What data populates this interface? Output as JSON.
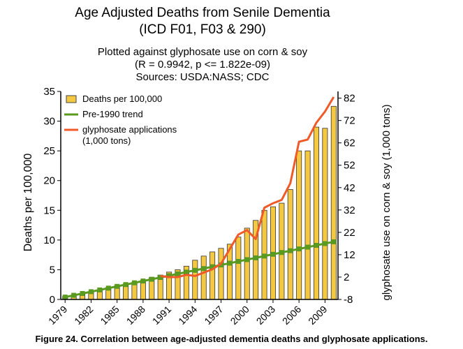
{
  "chart_data": {
    "type": "bar",
    "title": "Age Adjusted Deaths from Senile Dementia",
    "title_line2": "(ICD F01, F03 & 290)",
    "subtitle": "Plotted against glyphosate use on corn & soy",
    "subtitle_line2": "(R = 0.9942, p <= 1.822e-09)",
    "sources": "Sources: USDA:NASS; CDC",
    "ylabel": "Deaths per 100,000",
    "y2label": "glyphosate use on corn & soy (1,000 tons)",
    "ylim": [
      0,
      35
    ],
    "y_ticks": [
      "0",
      "5",
      "10",
      "15",
      "20",
      "25",
      "30",
      "35"
    ],
    "y2lim": [
      -8,
      85
    ],
    "y2_ticks": [
      "-8",
      "2",
      "12",
      "22",
      "32",
      "42",
      "52",
      "62",
      "72",
      "82"
    ],
    "x_ticks": [
      "1979",
      "1982",
      "1985",
      "1988",
      "1991",
      "1994",
      "1997",
      "2000",
      "2003",
      "2006",
      "2009"
    ],
    "years": [
      1979,
      1980,
      1981,
      1982,
      1983,
      1984,
      1985,
      1986,
      1987,
      1988,
      1989,
      1990,
      1991,
      1992,
      1993,
      1994,
      1995,
      1996,
      1997,
      1998,
      1999,
      2000,
      2001,
      2002,
      2003,
      2004,
      2005,
      2006,
      2007,
      2008,
      2009,
      2010
    ],
    "series": [
      {
        "name": "Deaths per 100,000",
        "kind": "bar",
        "color": "#f5c842",
        "values": [
          0.5,
          0.7,
          1.0,
          1.3,
          1.6,
          2.0,
          2.3,
          2.6,
          2.9,
          3.2,
          3.7,
          4.1,
          4.6,
          5.0,
          5.6,
          6.6,
          7.3,
          8.0,
          8.6,
          9.3,
          10.5,
          12.0,
          13.3,
          15.0,
          15.6,
          16.2,
          18.5,
          25.0,
          25.0,
          29.0,
          28.8,
          32.5
        ]
      },
      {
        "name": "Pre-1990 trend",
        "kind": "line",
        "color": "#5a9a1e",
        "values": [
          0.4,
          0.7,
          1.0,
          1.3,
          1.6,
          1.9,
          2.2,
          2.5,
          2.8,
          3.1,
          3.4,
          3.7,
          4.0,
          4.3,
          4.6,
          4.9,
          5.2,
          5.5,
          5.8,
          6.1,
          6.4,
          6.7,
          7.0,
          7.3,
          7.6,
          7.9,
          8.2,
          8.5,
          8.8,
          9.1,
          9.4,
          9.7
        ]
      },
      {
        "name": "glyphosate applications",
        "name_line2": "(1,000 tons)",
        "kind": "line",
        "axis": "right",
        "color": "#f05a28",
        "years": [
          1990,
          1991,
          1992,
          1993,
          1994,
          1995,
          1996,
          1997,
          1998,
          1999,
          2000,
          2001,
          2002,
          2003,
          2004,
          2005,
          2006,
          2007,
          2008,
          2009,
          2010
        ],
        "values": [
          2.5,
          2.0,
          2.0,
          3.0,
          2.5,
          4.0,
          5.5,
          8.0,
          14.5,
          21.0,
          23.0,
          19.0,
          33.0,
          35.0,
          36.5,
          44.0,
          62.5,
          63.5,
          71.0,
          76.0,
          82.5
        ]
      }
    ]
  },
  "caption": "Figure 24. Correlation between age-adjusted dementia deaths and glyphosate applications."
}
